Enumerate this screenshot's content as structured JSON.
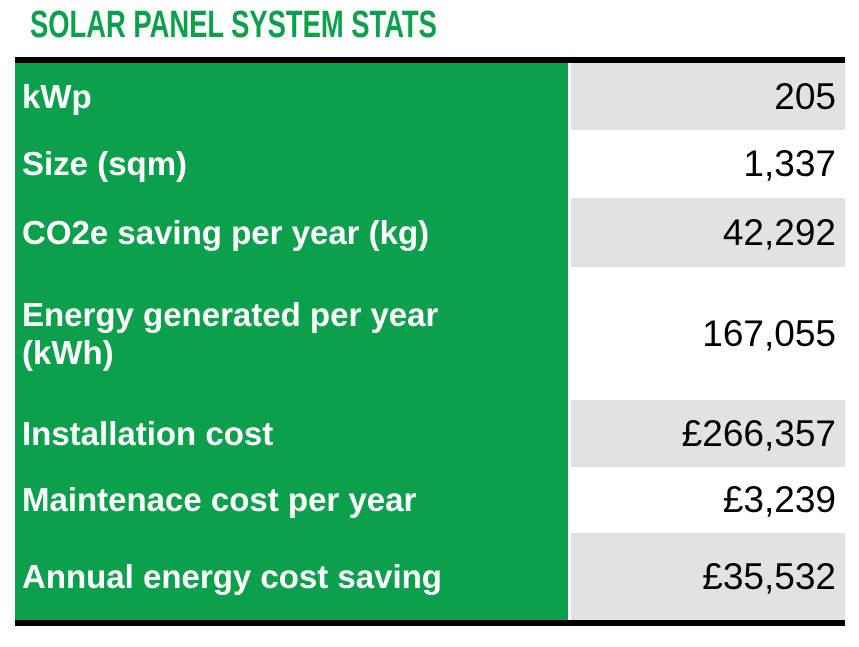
{
  "title": "SOLAR PANEL SYSTEM STATS",
  "colors": {
    "green": "#0DA04C",
    "title_green": "#0DA04C",
    "gray": "#E2E2E2",
    "border_black": "#000000",
    "label_text": "#FFFFFF",
    "value_text": "#000000"
  },
  "table": {
    "rows": [
      {
        "label": "kWp",
        "value": "205"
      },
      {
        "label": "Size (sqm)",
        "value": "1,337"
      },
      {
        "label": "CO2e saving per year (kg)",
        "value": "42,292"
      },
      {
        "label": "Energy generated per year\n(kWh)",
        "value": "167,055"
      },
      {
        "label": "Installation cost",
        "value": "£266,357"
      },
      {
        "label": "Maintenace cost per year",
        "value": "£3,239"
      },
      {
        "label": "Annual energy cost saving",
        "value": "£35,532"
      }
    ]
  },
  "chart_data": {
    "type": "table",
    "title": "SOLAR PANEL SYSTEM STATS",
    "categories": [
      "kWp",
      "Size (sqm)",
      "CO2e saving per year (kg)",
      "Energy generated per year (kWh)",
      "Installation cost",
      "Maintenace cost per year",
      "Annual energy cost saving"
    ],
    "values": [
      205,
      1337,
      42292,
      167055,
      266357,
      3239,
      35532
    ],
    "display_values": [
      "205",
      "1,337",
      "42,292",
      "167,055",
      "£266,357",
      "£3,239",
      "£35,532"
    ],
    "units": [
      "kWp",
      "sqm",
      "kg",
      "kWh",
      "GBP",
      "GBP",
      "GBP"
    ],
    "layout_hints": {
      "label_column_style": "green background, white bold text",
      "value_column_style": "right-aligned, alternating gray/white rows",
      "borders": "thick black top and bottom"
    }
  }
}
